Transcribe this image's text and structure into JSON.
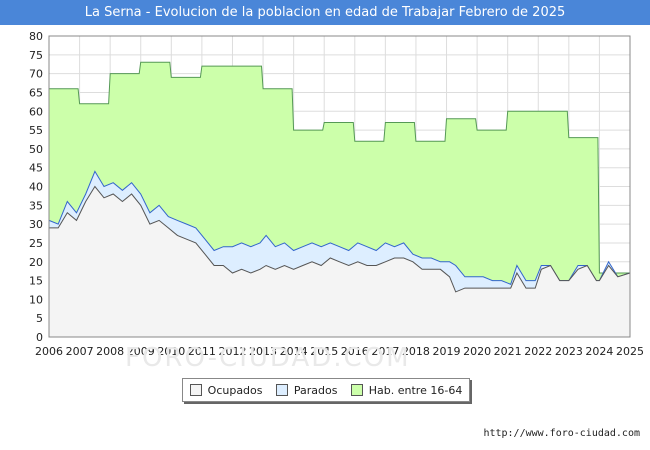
{
  "chart_data": {
    "type": "area",
    "title": "La Serna - Evolucion de la poblacion en edad de Trabajar Febrero de 2025",
    "xlabel": "",
    "ylabel": "",
    "x_ticks": [
      "2006",
      "2007",
      "2008",
      "2009",
      "2010",
      "2011",
      "2012",
      "2013",
      "2014",
      "2015",
      "2016",
      "2017",
      "2018",
      "2019",
      "2020",
      "2021",
      "2022",
      "2023",
      "2024",
      "2025"
    ],
    "y_ticks": [
      "0",
      "5",
      "10",
      "15",
      "20",
      "25",
      "30",
      "35",
      "40",
      "45",
      "50",
      "55",
      "60",
      "65",
      "70",
      "75",
      "80"
    ],
    "xlim": [
      2006,
      2025
    ],
    "ylim": [
      0,
      80
    ],
    "grid": true,
    "legend_position": "bottom",
    "series": [
      {
        "name": "Hab. entre 16-64",
        "color": "#ccffaa",
        "stroke": "#559955",
        "points": [
          [
            2006.0,
            66
          ],
          [
            2006.95,
            66
          ],
          [
            2007.0,
            62
          ],
          [
            2007.95,
            62
          ],
          [
            2008.0,
            70
          ],
          [
            2008.95,
            70
          ],
          [
            2009.0,
            73
          ],
          [
            2009.95,
            73
          ],
          [
            2010.0,
            69
          ],
          [
            2010.95,
            69
          ],
          [
            2011.0,
            72
          ],
          [
            2011.95,
            72
          ],
          [
            2012.0,
            72
          ],
          [
            2012.95,
            72
          ],
          [
            2013.0,
            66
          ],
          [
            2013.95,
            66
          ],
          [
            2014.0,
            55
          ],
          [
            2014.95,
            55
          ],
          [
            2015.0,
            57
          ],
          [
            2015.95,
            57
          ],
          [
            2016.0,
            52
          ],
          [
            2016.95,
            52
          ],
          [
            2017.0,
            57
          ],
          [
            2017.95,
            57
          ],
          [
            2018.0,
            52
          ],
          [
            2018.95,
            52
          ],
          [
            2019.0,
            58
          ],
          [
            2019.95,
            58
          ],
          [
            2020.0,
            55
          ],
          [
            2020.95,
            55
          ],
          [
            2021.0,
            60
          ],
          [
            2021.95,
            60
          ],
          [
            2022.0,
            60
          ],
          [
            2022.95,
            60
          ],
          [
            2023.0,
            53
          ],
          [
            2023.95,
            53
          ],
          [
            2024.0,
            17
          ],
          [
            2025.0,
            17
          ]
        ]
      },
      {
        "name": "Parados",
        "color": "#ddeeff",
        "stroke": "#3366cc",
        "points": [
          [
            2006.0,
            31
          ],
          [
            2006.3,
            30
          ],
          [
            2006.6,
            36
          ],
          [
            2006.9,
            33
          ],
          [
            2007.2,
            38
          ],
          [
            2007.5,
            44
          ],
          [
            2007.8,
            40
          ],
          [
            2008.1,
            41
          ],
          [
            2008.4,
            39
          ],
          [
            2008.7,
            41
          ],
          [
            2009.0,
            38
          ],
          [
            2009.3,
            33
          ],
          [
            2009.6,
            35
          ],
          [
            2009.9,
            32
          ],
          [
            2010.2,
            31
          ],
          [
            2010.5,
            30
          ],
          [
            2010.8,
            29
          ],
          [
            2011.1,
            26
          ],
          [
            2011.4,
            23
          ],
          [
            2011.7,
            24
          ],
          [
            2012.0,
            24
          ],
          [
            2012.3,
            25
          ],
          [
            2012.6,
            24
          ],
          [
            2012.9,
            25
          ],
          [
            2013.1,
            27
          ],
          [
            2013.4,
            24
          ],
          [
            2013.7,
            25
          ],
          [
            2014.0,
            23
          ],
          [
            2014.3,
            24
          ],
          [
            2014.6,
            25
          ],
          [
            2014.9,
            24
          ],
          [
            2015.2,
            25
          ],
          [
            2015.5,
            24
          ],
          [
            2015.8,
            23
          ],
          [
            2016.1,
            25
          ],
          [
            2016.4,
            24
          ],
          [
            2016.7,
            23
          ],
          [
            2017.0,
            25
          ],
          [
            2017.3,
            24
          ],
          [
            2017.6,
            25
          ],
          [
            2017.9,
            22
          ],
          [
            2018.2,
            21
          ],
          [
            2018.5,
            21
          ],
          [
            2018.8,
            20
          ],
          [
            2019.1,
            20
          ],
          [
            2019.3,
            19
          ],
          [
            2019.6,
            16
          ],
          [
            2019.9,
            16
          ],
          [
            2020.2,
            16
          ],
          [
            2020.5,
            15
          ],
          [
            2020.8,
            15
          ],
          [
            2021.1,
            14
          ],
          [
            2021.3,
            19
          ],
          [
            2021.6,
            15
          ],
          [
            2021.9,
            15
          ],
          [
            2022.1,
            19
          ],
          [
            2022.4,
            19
          ],
          [
            2022.7,
            15
          ],
          [
            2023.0,
            15
          ],
          [
            2023.3,
            19
          ],
          [
            2023.6,
            19
          ],
          [
            2023.9,
            15
          ],
          [
            2024.0,
            15
          ],
          [
            2024.3,
            20
          ],
          [
            2024.6,
            16
          ],
          [
            2025.0,
            17
          ]
        ]
      },
      {
        "name": "Ocupados",
        "color": "#f4f4f4",
        "stroke": "#555555",
        "points": [
          [
            2006.0,
            29
          ],
          [
            2006.3,
            29
          ],
          [
            2006.6,
            33
          ],
          [
            2006.9,
            31
          ],
          [
            2007.2,
            36
          ],
          [
            2007.5,
            40
          ],
          [
            2007.8,
            37
          ],
          [
            2008.1,
            38
          ],
          [
            2008.4,
            36
          ],
          [
            2008.7,
            38
          ],
          [
            2009.0,
            35
          ],
          [
            2009.3,
            30
          ],
          [
            2009.6,
            31
          ],
          [
            2009.9,
            29
          ],
          [
            2010.2,
            27
          ],
          [
            2010.5,
            26
          ],
          [
            2010.8,
            25
          ],
          [
            2011.1,
            22
          ],
          [
            2011.4,
            19
          ],
          [
            2011.7,
            19
          ],
          [
            2012.0,
            17
          ],
          [
            2012.3,
            18
          ],
          [
            2012.6,
            17
          ],
          [
            2012.9,
            18
          ],
          [
            2013.1,
            19
          ],
          [
            2013.4,
            18
          ],
          [
            2013.7,
            19
          ],
          [
            2014.0,
            18
          ],
          [
            2014.3,
            19
          ],
          [
            2014.6,
            20
          ],
          [
            2014.9,
            19
          ],
          [
            2015.2,
            21
          ],
          [
            2015.5,
            20
          ],
          [
            2015.8,
            19
          ],
          [
            2016.1,
            20
          ],
          [
            2016.4,
            19
          ],
          [
            2016.7,
            19
          ],
          [
            2017.0,
            20
          ],
          [
            2017.3,
            21
          ],
          [
            2017.6,
            21
          ],
          [
            2017.9,
            20
          ],
          [
            2018.2,
            18
          ],
          [
            2018.5,
            18
          ],
          [
            2018.8,
            18
          ],
          [
            2019.1,
            16
          ],
          [
            2019.3,
            12
          ],
          [
            2019.6,
            13
          ],
          [
            2019.9,
            13
          ],
          [
            2020.2,
            13
          ],
          [
            2020.5,
            13
          ],
          [
            2020.8,
            13
          ],
          [
            2021.1,
            13
          ],
          [
            2021.3,
            17
          ],
          [
            2021.6,
            13
          ],
          [
            2021.9,
            13
          ],
          [
            2022.1,
            18
          ],
          [
            2022.4,
            19
          ],
          [
            2022.7,
            15
          ],
          [
            2023.0,
            15
          ],
          [
            2023.3,
            18
          ],
          [
            2023.6,
            19
          ],
          [
            2023.9,
            15
          ],
          [
            2024.0,
            15
          ],
          [
            2024.3,
            19
          ],
          [
            2024.6,
            16
          ],
          [
            2025.0,
            17
          ]
        ]
      }
    ]
  },
  "legend": {
    "items": [
      {
        "label": "Ocupados",
        "color": "#f4f4f4"
      },
      {
        "label": "Parados",
        "color": "#ddeeff"
      },
      {
        "label": "Hab. entre 16-64",
        "color": "#ccffaa"
      }
    ]
  },
  "watermark": "FORO-CIUDAD.COM",
  "source": "http://www.foro-ciudad.com"
}
